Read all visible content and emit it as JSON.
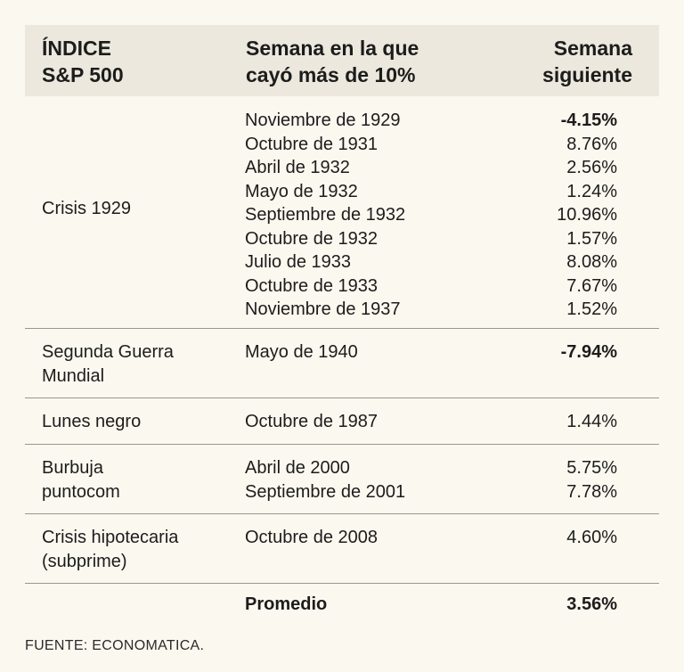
{
  "header": {
    "col1": [
      "ÍNDICE",
      "S&P 500"
    ],
    "col2": [
      "Semana en la que",
      "cayó más de 10%"
    ],
    "col3": [
      "Semana",
      "siguiente"
    ]
  },
  "groups": [
    {
      "label": [
        "Crisis 1929"
      ],
      "rows": [
        {
          "week": "Noviembre de 1929",
          "next": "-4.15%",
          "bold": true
        },
        {
          "week": "Octubre de 1931",
          "next": "8.76%",
          "bold": false
        },
        {
          "week": "Abril de 1932",
          "next": "2.56%",
          "bold": false
        },
        {
          "week": "Mayo de 1932",
          "next": "1.24%",
          "bold": false
        },
        {
          "week": "Septiembre de 1932",
          "next": "10.96%",
          "bold": false
        },
        {
          "week": "Octubre de 1932",
          "next": "1.57%",
          "bold": false
        },
        {
          "week": "Julio de 1933",
          "next": "8.08%",
          "bold": false
        },
        {
          "week": "Octubre de 1933",
          "next": "7.67%",
          "bold": false
        },
        {
          "week": "Noviembre de 1937",
          "next": "1.52%",
          "bold": false
        }
      ]
    },
    {
      "label": [
        "Segunda Guerra",
        "Mundial"
      ],
      "rows": [
        {
          "week": "Mayo de 1940",
          "next": "-7.94%",
          "bold": true
        }
      ]
    },
    {
      "label": [
        "Lunes negro"
      ],
      "rows": [
        {
          "week": "Octubre de 1987",
          "next": "1.44%",
          "bold": false
        }
      ]
    },
    {
      "label": [
        "Burbuja",
        "puntocom"
      ],
      "rows": [
        {
          "week": "Abril de 2000",
          "next": "5.75%",
          "bold": false
        },
        {
          "week": "Septiembre de 2001",
          "next": "7.78%",
          "bold": false
        }
      ]
    },
    {
      "label": [
        "Crisis hipotecaria",
        "(subprime)"
      ],
      "rows": [
        {
          "week": "Octubre de 2008",
          "next": "4.60%",
          "bold": false
        }
      ]
    }
  ],
  "footer": {
    "label": "Promedio",
    "value": "3.56%"
  },
  "source": "FUENTE: ECONOMATICA."
}
